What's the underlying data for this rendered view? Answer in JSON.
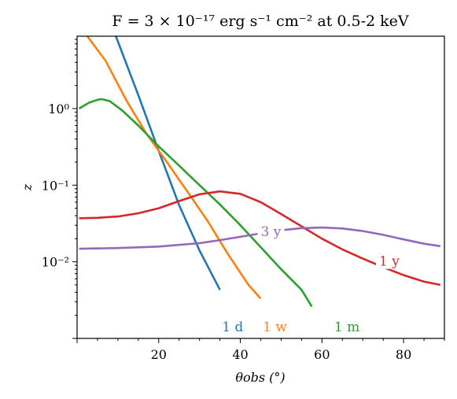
{
  "chart_data": {
    "type": "line",
    "title": "F = 3 × 10⁻¹⁷ erg s⁻¹ cm⁻² at 0.5-2 keV",
    "xlabel": "θobs (°)",
    "ylabel": "z",
    "xlim": [
      0,
      90
    ],
    "ylim": [
      0.001,
      8.8
    ],
    "yscale": "log",
    "grid": false,
    "legend": "none",
    "x_ticks": [
      20,
      40,
      60,
      80
    ],
    "x_tick_labels": [
      "20",
      "40",
      "60",
      "80"
    ],
    "y_ticks": [
      1,
      0.1,
      0.01
    ],
    "y_tick_labels": [
      "10⁰",
      "10⁻¹",
      "10⁻²"
    ],
    "series": [
      {
        "name": "1 d",
        "color": "#1f77b4",
        "x": [
          9.5,
          15,
          20,
          25,
          30,
          35
        ],
        "y": [
          8.8,
          1.5,
          0.28,
          0.055,
          0.014,
          0.0043
        ],
        "label_x": 35.5,
        "label_y": 0.0013
      },
      {
        "name": "1 w",
        "color": "#ff7f0e",
        "x": [
          2.5,
          7,
          12,
          17,
          22,
          27,
          32,
          37,
          42,
          45
        ],
        "y": [
          8.8,
          4.2,
          1.3,
          0.47,
          0.2,
          0.083,
          0.034,
          0.0125,
          0.005,
          0.0033
        ],
        "label_x": 45.5,
        "label_y": 0.0013
      },
      {
        "name": "1 m",
        "color": "#2ca02c",
        "x": [
          0.5,
          3,
          5,
          6,
          8,
          11,
          15,
          20,
          25,
          30,
          35,
          40,
          45,
          50,
          55,
          57.5
        ],
        "y": [
          1.0,
          1.2,
          1.3,
          1.33,
          1.25,
          0.95,
          0.6,
          0.32,
          0.18,
          0.1,
          0.056,
          0.03,
          0.0155,
          0.008,
          0.0043,
          0.0026
        ],
        "label_x": 63,
        "label_y": 0.0013
      },
      {
        "name": "1 y",
        "color": "#d62728",
        "x": [
          0.5,
          5,
          10,
          15,
          20,
          25,
          30,
          35,
          40,
          45,
          50,
          55,
          60,
          65,
          70,
          75,
          80,
          85,
          89
        ],
        "y": [
          0.037,
          0.0375,
          0.039,
          0.043,
          0.05,
          0.062,
          0.076,
          0.083,
          0.077,
          0.06,
          0.042,
          0.029,
          0.02,
          0.0145,
          0.011,
          0.0085,
          0.0067,
          0.0055,
          0.005
        ],
        "label_x": 74,
        "label_y": 0.0093
      },
      {
        "name": "3 y",
        "color": "#9467bd",
        "x": [
          0.5,
          10,
          20,
          30,
          35,
          40,
          45,
          50,
          55,
          60,
          65,
          70,
          75,
          80,
          85,
          89
        ],
        "y": [
          0.0148,
          0.0151,
          0.0158,
          0.0175,
          0.0192,
          0.0212,
          0.0235,
          0.0258,
          0.0275,
          0.028,
          0.0272,
          0.0252,
          0.0225,
          0.0196,
          0.0172,
          0.016
        ],
        "label_x": 45,
        "label_y": 0.0227
      }
    ]
  }
}
